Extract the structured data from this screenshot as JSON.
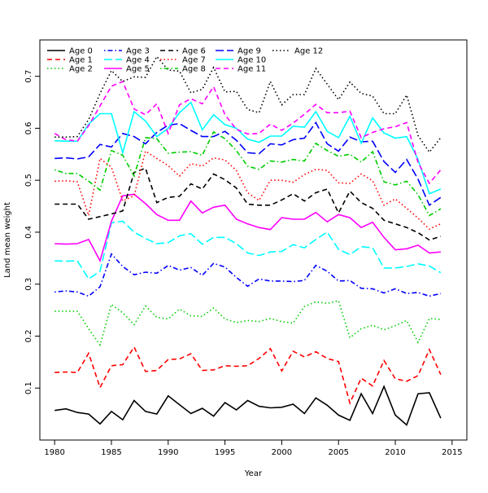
{
  "chart_data": {
    "type": "line",
    "title": "",
    "xlabel": "Year",
    "ylabel": "Land mean weight",
    "xlim": [
      1978.7,
      2016.3
    ],
    "ylim": [
      0.0,
      0.77
    ],
    "xticks": [
      1980,
      1985,
      1990,
      1995,
      2000,
      2005,
      2010,
      2015
    ],
    "yticks": [
      0.1,
      0.2,
      0.3,
      0.4,
      0.5,
      0.6,
      0.7
    ],
    "grid": false,
    "legend_placement": "top-left",
    "x": [
      1980,
      1981,
      1982,
      1983,
      1984,
      1985,
      1986,
      1987,
      1988,
      1989,
      1990,
      1991,
      1992,
      1993,
      1994,
      1995,
      1996,
      1997,
      1998,
      1999,
      2000,
      2001,
      2002,
      2003,
      2004,
      2005,
      2006,
      2007,
      2008,
      2009,
      2010,
      2011,
      2012,
      2013,
      2014
    ],
    "series": [
      {
        "name": "Age 0",
        "color": "#000000",
        "dash": "solid",
        "values": [
          0.057,
          0.06,
          0.053,
          0.05,
          0.031,
          0.055,
          0.039,
          0.076,
          0.055,
          0.05,
          0.085,
          0.068,
          0.051,
          0.061,
          0.046,
          0.072,
          0.058,
          0.076,
          0.065,
          0.062,
          0.063,
          0.069,
          0.051,
          0.081,
          0.067,
          0.048,
          0.038,
          0.089,
          0.051,
          0.103,
          0.048,
          0.029,
          0.089,
          0.091,
          0.042
        ]
      },
      {
        "name": "Age 1",
        "color": "#ff0000",
        "dash": "dashed",
        "values": [
          0.13,
          0.131,
          0.13,
          0.167,
          0.101,
          0.143,
          0.145,
          0.179,
          0.132,
          0.134,
          0.155,
          0.156,
          0.166,
          0.134,
          0.135,
          0.143,
          0.142,
          0.143,
          0.157,
          0.176,
          0.133,
          0.171,
          0.16,
          0.17,
          0.157,
          0.151,
          0.071,
          0.119,
          0.104,
          0.153,
          0.118,
          0.113,
          0.124,
          0.174,
          0.126
        ]
      },
      {
        "name": "Age 2",
        "color": "#00cd00",
        "dash": "dotted",
        "values": [
          0.248,
          0.248,
          0.248,
          0.214,
          0.183,
          0.261,
          0.245,
          0.222,
          0.258,
          0.236,
          0.233,
          0.252,
          0.239,
          0.238,
          0.254,
          0.233,
          0.226,
          0.23,
          0.228,
          0.234,
          0.228,
          0.225,
          0.257,
          0.266,
          0.263,
          0.268,
          0.197,
          0.214,
          0.221,
          0.212,
          0.22,
          0.23,
          0.188,
          0.234,
          0.232
        ]
      },
      {
        "name": "Age 3",
        "color": "#0000ff",
        "dash": "dotdash",
        "values": [
          0.285,
          0.287,
          0.285,
          0.277,
          0.295,
          0.358,
          0.334,
          0.318,
          0.323,
          0.321,
          0.336,
          0.327,
          0.332,
          0.317,
          0.34,
          0.333,
          0.313,
          0.296,
          0.31,
          0.306,
          0.306,
          0.305,
          0.307,
          0.336,
          0.325,
          0.306,
          0.307,
          0.292,
          0.291,
          0.283,
          0.291,
          0.282,
          0.284,
          0.277,
          0.282
        ]
      },
      {
        "name": "Age 4",
        "color": "#00ffff",
        "dash": "longdash",
        "values": [
          0.345,
          0.344,
          0.345,
          0.31,
          0.325,
          0.418,
          0.421,
          0.4,
          0.388,
          0.378,
          0.38,
          0.393,
          0.397,
          0.377,
          0.39,
          0.39,
          0.378,
          0.36,
          0.355,
          0.362,
          0.363,
          0.376,
          0.37,
          0.386,
          0.4,
          0.367,
          0.357,
          0.372,
          0.37,
          0.331,
          0.331,
          0.334,
          0.339,
          0.335,
          0.322
        ]
      },
      {
        "name": "Age 5",
        "color": "#ff00ff",
        "dash": "solid",
        "values": [
          0.378,
          0.377,
          0.378,
          0.386,
          0.345,
          0.421,
          0.47,
          0.473,
          0.455,
          0.434,
          0.423,
          0.423,
          0.46,
          0.437,
          0.448,
          0.452,
          0.425,
          0.416,
          0.409,
          0.405,
          0.428,
          0.425,
          0.425,
          0.438,
          0.42,
          0.434,
          0.428,
          0.409,
          0.419,
          0.39,
          0.366,
          0.368,
          0.375,
          0.36,
          0.362
        ]
      },
      {
        "name": "Age 6",
        "color": "#000000",
        "dash": "dashed",
        "values": [
          0.454,
          0.454,
          0.454,
          0.425,
          0.43,
          0.435,
          0.441,
          0.515,
          0.523,
          0.457,
          0.467,
          0.469,
          0.493,
          0.483,
          0.512,
          0.501,
          0.485,
          0.454,
          0.452,
          0.452,
          0.462,
          0.474,
          0.46,
          0.476,
          0.483,
          0.437,
          0.479,
          0.457,
          0.446,
          0.423,
          0.416,
          0.409,
          0.399,
          0.385,
          0.392
        ]
      },
      {
        "name": "Age 7",
        "color": "#ff0000",
        "dash": "dotted",
        "values": [
          0.498,
          0.499,
          0.497,
          0.432,
          0.542,
          0.525,
          0.46,
          0.47,
          0.556,
          0.542,
          0.528,
          0.508,
          0.532,
          0.527,
          0.543,
          0.539,
          0.519,
          0.476,
          0.461,
          0.5,
          0.5,
          0.496,
          0.511,
          0.521,
          0.519,
          0.495,
          0.494,
          0.512,
          0.499,
          0.452,
          0.464,
          0.446,
          0.427,
          0.406,
          0.416
        ]
      },
      {
        "name": "Age 8",
        "color": "#00cd00",
        "dash": "dotdash",
        "values": [
          0.52,
          0.513,
          0.513,
          0.498,
          0.481,
          0.557,
          0.548,
          0.508,
          0.582,
          0.58,
          0.552,
          0.554,
          0.555,
          0.548,
          0.593,
          0.58,
          0.557,
          0.527,
          0.521,
          0.537,
          0.535,
          0.54,
          0.537,
          0.571,
          0.557,
          0.546,
          0.55,
          0.535,
          0.555,
          0.497,
          0.491,
          0.498,
          0.472,
          0.432,
          0.445
        ]
      },
      {
        "name": "Age 9",
        "color": "#0000ff",
        "dash": "longdash",
        "values": [
          0.542,
          0.543,
          0.541,
          0.545,
          0.569,
          0.564,
          0.59,
          0.584,
          0.57,
          0.592,
          0.606,
          0.609,
          0.596,
          0.584,
          0.584,
          0.594,
          0.577,
          0.553,
          0.551,
          0.57,
          0.568,
          0.578,
          0.581,
          0.611,
          0.57,
          0.556,
          0.583,
          0.574,
          0.575,
          0.536,
          0.515,
          0.54,
          0.502,
          0.452,
          0.467
        ]
      },
      {
        "name": "Age 10",
        "color": "#00ffff",
        "dash": "solid",
        "values": [
          0.576,
          0.575,
          0.575,
          0.608,
          0.628,
          0.628,
          0.553,
          0.632,
          0.614,
          0.584,
          0.6,
          0.63,
          0.65,
          0.597,
          0.626,
          0.607,
          0.6,
          0.579,
          0.573,
          0.585,
          0.585,
          0.604,
          0.602,
          0.632,
          0.594,
          0.582,
          0.623,
          0.571,
          0.62,
          0.591,
          0.581,
          0.584,
          0.54,
          0.474,
          0.483
        ]
      },
      {
        "name": "Age 11",
        "color": "#ff00ff",
        "dash": "dashed",
        "values": [
          0.59,
          0.578,
          0.575,
          0.605,
          0.643,
          0.681,
          0.69,
          0.637,
          0.626,
          0.647,
          0.59,
          0.645,
          0.657,
          0.647,
          0.68,
          0.626,
          0.598,
          0.589,
          0.59,
          0.608,
          0.596,
          0.61,
          0.627,
          0.646,
          0.63,
          0.63,
          0.633,
          0.582,
          0.592,
          0.599,
          0.603,
          0.611,
          0.534,
          0.494,
          0.52
        ]
      },
      {
        "name": "Age 12",
        "color": "#000000",
        "dash": "dotted",
        "values": [
          0.583,
          0.583,
          0.584,
          0.617,
          0.667,
          0.711,
          0.69,
          0.699,
          0.698,
          0.738,
          0.712,
          0.71,
          0.668,
          0.675,
          0.717,
          0.67,
          0.671,
          0.636,
          0.63,
          0.69,
          0.645,
          0.665,
          0.665,
          0.715,
          0.685,
          0.655,
          0.689,
          0.667,
          0.662,
          0.628,
          0.628,
          0.664,
          0.586,
          0.554,
          0.582
        ]
      }
    ]
  }
}
